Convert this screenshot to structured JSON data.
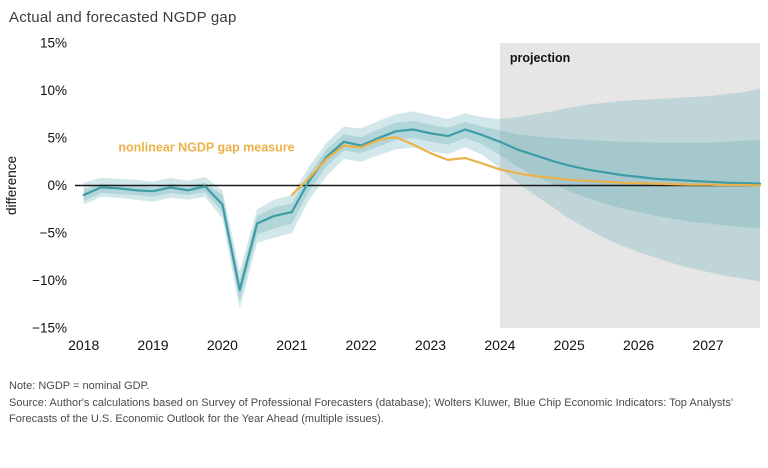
{
  "page": {
    "title": "Actual and forecasted NGDP gap",
    "note_line": "Note: NGDP = nominal GDP.",
    "source_line": "Source: Author's calculations based on Survey of Professional Forecasters (database); Wolters Kluwer, Blue Chip Economic Indicators: Top Analysts' Forecasts of the U.S. Economic Outlook for the Year Ahead (multiple issues)."
  },
  "chart_data": {
    "type": "line",
    "title": "Actual and forecasted NGDP gap",
    "xlabel": "",
    "ylabel": "difference",
    "ylim": [
      -15,
      15
    ],
    "xlim": [
      2017.875,
      2027.75
    ],
    "grid": false,
    "legend_position": "none",
    "yticks": [
      {
        "value": 15,
        "label": "15%"
      },
      {
        "value": 10,
        "label": "10%"
      },
      {
        "value": 5,
        "label": "5%"
      },
      {
        "value": 0,
        "label": "0%"
      },
      {
        "value": -5,
        "label": "−5%"
      },
      {
        "value": -10,
        "label": "−10%"
      },
      {
        "value": -15,
        "label": "−15%"
      }
    ],
    "xticks": [
      2018,
      2019,
      2020,
      2021,
      2022,
      2023,
      2024,
      2025,
      2026,
      2027
    ],
    "projection": {
      "start": 2024,
      "label": "projection"
    },
    "annotation": {
      "text": "nonlinear NGDP gap measure",
      "x": 2018.5,
      "y": 3.6
    },
    "colors": {
      "projection_bg": "#e6e6e6",
      "band": "#5ea8b0",
      "band_opacity": 0.28,
      "zero_line": "#1a1a1a",
      "actual_line": "#3d9ca6",
      "nonlinear_line": "#ecb24a"
    },
    "series": [
      {
        "name": "actual and forecasted NGDP gap",
        "color": "#3d9ca6",
        "x": [
          2018.0,
          2018.25,
          2018.5,
          2018.75,
          2019.0,
          2019.25,
          2019.5,
          2019.75,
          2020.0,
          2020.25,
          2020.5,
          2020.75,
          2021.0,
          2021.25,
          2021.5,
          2021.75,
          2022.0,
          2022.25,
          2022.5,
          2022.75,
          2023.0,
          2023.25,
          2023.5,
          2023.75,
          2024.0,
          2024.25,
          2024.5,
          2024.75,
          2025.0,
          2025.25,
          2025.5,
          2025.75,
          2026.0,
          2026.25,
          2026.5,
          2026.75,
          2027.0,
          2027.25,
          2027.5,
          2027.75
        ],
        "y": [
          -1.0,
          -0.2,
          -0.3,
          -0.5,
          -0.6,
          -0.2,
          -0.5,
          -0.1,
          -2.0,
          -11.0,
          -4.0,
          -3.2,
          -2.8,
          0.5,
          3.0,
          4.6,
          4.2,
          5.0,
          5.7,
          5.9,
          5.5,
          5.2,
          5.9,
          5.3,
          4.6,
          3.8,
          3.2,
          2.6,
          2.1,
          1.7,
          1.4,
          1.1,
          0.9,
          0.7,
          0.6,
          0.5,
          0.4,
          0.3,
          0.25,
          0.2
        ]
      },
      {
        "name": "nonlinear NGDP gap measure",
        "color": "#ecb24a",
        "x": [
          2021.0,
          2021.25,
          2021.5,
          2021.75,
          2022.0,
          2022.25,
          2022.5,
          2022.75,
          2023.0,
          2023.25,
          2023.5,
          2023.75,
          2024.0,
          2024.25,
          2024.5,
          2024.75,
          2025.0,
          2025.25,
          2025.5,
          2025.75,
          2026.0,
          2026.25,
          2026.5,
          2026.75,
          2027.0,
          2027.25,
          2027.5,
          2027.75
        ],
        "y": [
          -1.0,
          0.8,
          2.8,
          4.2,
          4.0,
          4.8,
          5.1,
          4.3,
          3.4,
          2.7,
          2.9,
          2.3,
          1.7,
          1.3,
          1.0,
          0.8,
          0.6,
          0.5,
          0.4,
          0.3,
          0.25,
          0.2,
          0.15,
          0.1,
          0.1,
          0.05,
          0.05,
          0.0
        ]
      }
    ],
    "bands": [
      {
        "name": "outer",
        "x": [
          2018.0,
          2018.25,
          2018.5,
          2018.75,
          2019.0,
          2019.25,
          2019.5,
          2019.75,
          2020.0,
          2020.25,
          2020.5,
          2020.75,
          2021.0,
          2021.25,
          2021.5,
          2021.75,
          2022.0,
          2022.25,
          2022.5,
          2022.75,
          2023.0,
          2023.25,
          2023.5,
          2023.75,
          2024.0,
          2024.25,
          2024.5,
          2024.75,
          2025.0,
          2025.25,
          2025.5,
          2025.75,
          2026.0,
          2026.25,
          2026.5,
          2026.75,
          2027.0,
          2027.25,
          2027.5,
          2027.75
        ],
        "upper": [
          0.3,
          0.8,
          0.7,
          0.6,
          0.4,
          0.8,
          0.5,
          0.9,
          -0.5,
          -9.0,
          -2.5,
          -1.5,
          -1.0,
          2.0,
          4.5,
          6.2,
          6.0,
          6.8,
          7.5,
          7.8,
          7.4,
          7.0,
          7.6,
          7.2,
          7.0,
          7.2,
          7.5,
          7.8,
          8.2,
          8.5,
          8.7,
          8.9,
          9.0,
          9.1,
          9.2,
          9.3,
          9.4,
          9.6,
          9.8,
          10.2
        ],
        "lower": [
          -2.0,
          -1.2,
          -1.3,
          -1.5,
          -1.7,
          -1.3,
          -1.5,
          -1.2,
          -3.5,
          -13.0,
          -6.0,
          -5.5,
          -5.0,
          -1.5,
          1.0,
          2.8,
          2.5,
          3.2,
          3.8,
          4.0,
          3.6,
          3.3,
          4.0,
          3.2,
          1.8,
          0.3,
          -1.0,
          -2.2,
          -3.5,
          -4.5,
          -5.5,
          -6.3,
          -7.0,
          -7.6,
          -8.2,
          -8.7,
          -9.1,
          -9.5,
          -9.8,
          -10.1
        ]
      },
      {
        "name": "inner",
        "x": [
          2018.0,
          2018.25,
          2018.5,
          2018.75,
          2019.0,
          2019.25,
          2019.5,
          2019.75,
          2020.0,
          2020.25,
          2020.5,
          2020.75,
          2021.0,
          2021.25,
          2021.5,
          2021.75,
          2022.0,
          2022.25,
          2022.5,
          2022.75,
          2023.0,
          2023.25,
          2023.5,
          2023.75,
          2024.0,
          2024.25,
          2024.5,
          2024.75,
          2025.0,
          2025.25,
          2025.5,
          2025.75,
          2026.0,
          2026.25,
          2026.5,
          2026.75,
          2027.0,
          2027.25,
          2027.5,
          2027.75
        ],
        "upper": [
          -0.4,
          0.2,
          0.1,
          0.0,
          -0.2,
          0.2,
          0.0,
          0.3,
          -1.0,
          -10.0,
          -3.2,
          -2.3,
          -1.9,
          1.2,
          3.8,
          5.4,
          5.1,
          5.9,
          6.6,
          6.8,
          6.4,
          6.1,
          6.7,
          6.2,
          5.8,
          5.4,
          5.2,
          5.0,
          4.9,
          4.8,
          4.7,
          4.6,
          4.6,
          4.5,
          4.5,
          4.5,
          4.5,
          4.6,
          4.7,
          4.8
        ],
        "lower": [
          -1.6,
          -0.8,
          -0.9,
          -1.0,
          -1.2,
          -0.8,
          -1.0,
          -0.7,
          -2.8,
          -12.2,
          -5.2,
          -4.5,
          -4.0,
          -0.6,
          2.0,
          3.7,
          3.4,
          4.1,
          4.8,
          5.0,
          4.6,
          4.3,
          5.0,
          4.3,
          3.2,
          2.0,
          1.0,
          0.2,
          -0.6,
          -1.3,
          -1.9,
          -2.4,
          -2.8,
          -3.2,
          -3.5,
          -3.8,
          -4.0,
          -4.2,
          -4.4,
          -4.5
        ]
      }
    ]
  }
}
